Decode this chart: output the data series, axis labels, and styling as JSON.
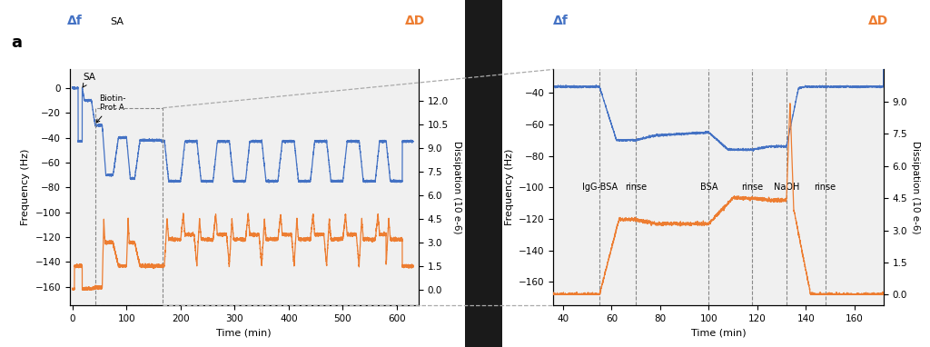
{
  "panel_a": {
    "blue_label": "Δf",
    "orange_label": "ΔD",
    "freq_yticks": [
      0,
      -20,
      -40,
      -60,
      -80,
      -100,
      -120,
      -140,
      -160
    ],
    "freq_ylim": [
      -175,
      15
    ],
    "diss_yticks": [
      0,
      1.5,
      3,
      4.5,
      6,
      7.5,
      9,
      10.5,
      12
    ],
    "diss_ylim": [
      -1,
      14
    ],
    "xticks": [
      0,
      100,
      200,
      300,
      400,
      500,
      600
    ],
    "xlim": [
      -5,
      640
    ],
    "xlabel": "Time (min)",
    "ylabel_left": "Frequency (Hz)",
    "ylabel_right": "Dissipation (10 e-6)"
  },
  "panel_b": {
    "blue_label": "Δf",
    "orange_label": "ΔD",
    "freq_yticks": [
      -160,
      -140,
      -120,
      -100,
      -80,
      -60,
      -40
    ],
    "freq_ylim": [
      -175,
      -25
    ],
    "diss_yticks": [
      0,
      1.5,
      3,
      4.5,
      6,
      7.5,
      9
    ],
    "diss_ylim": [
      -0.5,
      10.5
    ],
    "xticks": [
      40,
      60,
      80,
      100,
      120,
      140,
      160
    ],
    "xlim": [
      36,
      172
    ],
    "xlabel": "Time (min)",
    "ylabel_left": "Frequency (Hz)",
    "ylabel_right": "Dissipation (10 e-6)",
    "vlines": [
      55,
      70,
      100,
      118,
      132,
      148
    ],
    "vlabels": [
      "IgG-BSA",
      "rinse",
      "BSA",
      "rinse",
      "NaOH",
      "rinse"
    ]
  },
  "colors": {
    "blue": "#4472C4",
    "orange": "#ED7D31",
    "panel_bg": "#f0f0f0",
    "black_bg": "#1a1a1a",
    "dashed": "#aaaaaa",
    "box": "#888888"
  }
}
